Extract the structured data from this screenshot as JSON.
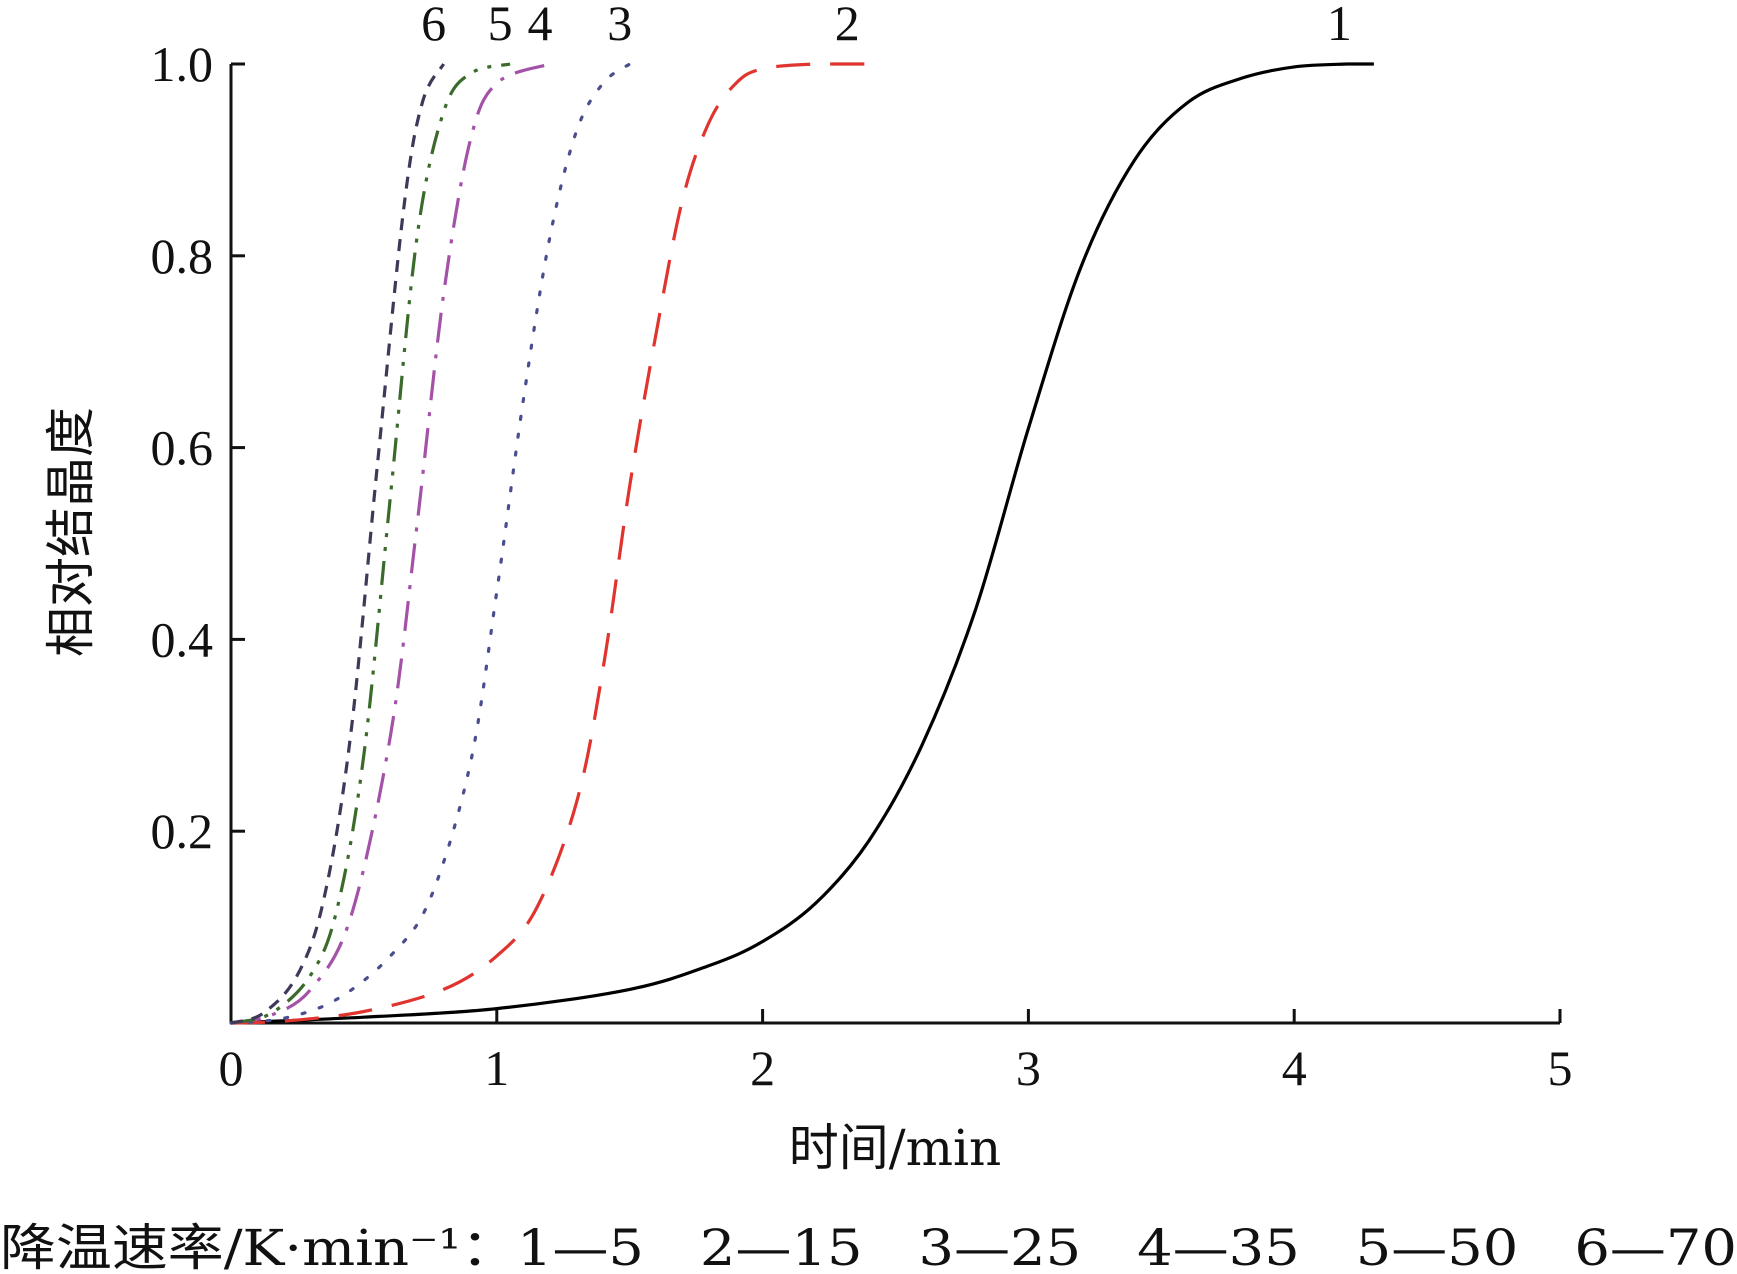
{
  "chart_data": {
    "type": "line",
    "xlabel": "时间/min",
    "ylabel": "相对结晶度",
    "xlim": [
      0,
      5
    ],
    "ylim": [
      0,
      1.0
    ],
    "x_ticks": [
      "0",
      "1",
      "2",
      "3",
      "4",
      "5"
    ],
    "y_ticks": [
      "0.2",
      "0.4",
      "0.6",
      "0.8",
      "1.0"
    ],
    "grid": false,
    "legend_caption": "降温速率/K·min⁻¹：1—5　2—15　3—25　4—35　5—50　6—70",
    "series": [
      {
        "name": "1",
        "rate": 5,
        "color": "#000000",
        "style": "solid",
        "x": [
          0,
          0.5,
          1.0,
          1.5,
          1.8,
          2.0,
          2.2,
          2.4,
          2.6,
          2.8,
          3.0,
          3.2,
          3.4,
          3.6,
          3.8,
          4.0,
          4.2,
          4.3
        ],
        "y": [
          0,
          0.006,
          0.015,
          0.035,
          0.06,
          0.085,
          0.125,
          0.19,
          0.29,
          0.43,
          0.62,
          0.79,
          0.9,
          0.96,
          0.985,
          0.997,
          1.0,
          1.0
        ]
      },
      {
        "name": "2",
        "rate": 15,
        "color": "#e0342e",
        "style": "dashed",
        "x": [
          0,
          0.2,
          0.5,
          0.8,
          1.0,
          1.15,
          1.3,
          1.4,
          1.5,
          1.6,
          1.7,
          1.8,
          1.9,
          2.0,
          2.2,
          2.45
        ],
        "y": [
          0,
          0.002,
          0.012,
          0.035,
          0.07,
          0.12,
          0.23,
          0.37,
          0.56,
          0.72,
          0.86,
          0.94,
          0.98,
          0.995,
          1.0,
          1.0
        ]
      },
      {
        "name": "3",
        "rate": 25,
        "color": "#4a4e8f",
        "style": "dotted",
        "x": [
          0,
          0.2,
          0.4,
          0.6,
          0.75,
          0.9,
          1.0,
          1.1,
          1.2,
          1.3,
          1.4,
          1.5
        ],
        "y": [
          0,
          0.005,
          0.025,
          0.07,
          0.13,
          0.27,
          0.45,
          0.65,
          0.82,
          0.93,
          0.98,
          1.0
        ]
      },
      {
        "name": "4",
        "rate": 35,
        "color": "#a452a8",
        "style": "dashdot",
        "x": [
          0,
          0.15,
          0.3,
          0.45,
          0.6,
          0.7,
          0.8,
          0.9,
          1.0,
          1.2
        ],
        "y": [
          0,
          0.008,
          0.035,
          0.11,
          0.3,
          0.52,
          0.76,
          0.92,
          0.98,
          1.0
        ]
      },
      {
        "name": "5",
        "rate": 50,
        "color": "#3b6b2a",
        "style": "dashdotdot",
        "x": [
          0,
          0.15,
          0.3,
          0.4,
          0.5,
          0.6,
          0.7,
          0.8,
          0.9,
          1.05
        ],
        "y": [
          0,
          0.01,
          0.05,
          0.12,
          0.28,
          0.55,
          0.82,
          0.95,
          0.99,
          1.0
        ]
      },
      {
        "name": "6",
        "rate": 70,
        "color": "#403858",
        "style": "shortdash",
        "x": [
          0,
          0.12,
          0.25,
          0.35,
          0.45,
          0.55,
          0.65,
          0.72,
          0.8
        ],
        "y": [
          0,
          0.01,
          0.05,
          0.13,
          0.3,
          0.58,
          0.85,
          0.96,
          1.0
        ]
      }
    ]
  }
}
